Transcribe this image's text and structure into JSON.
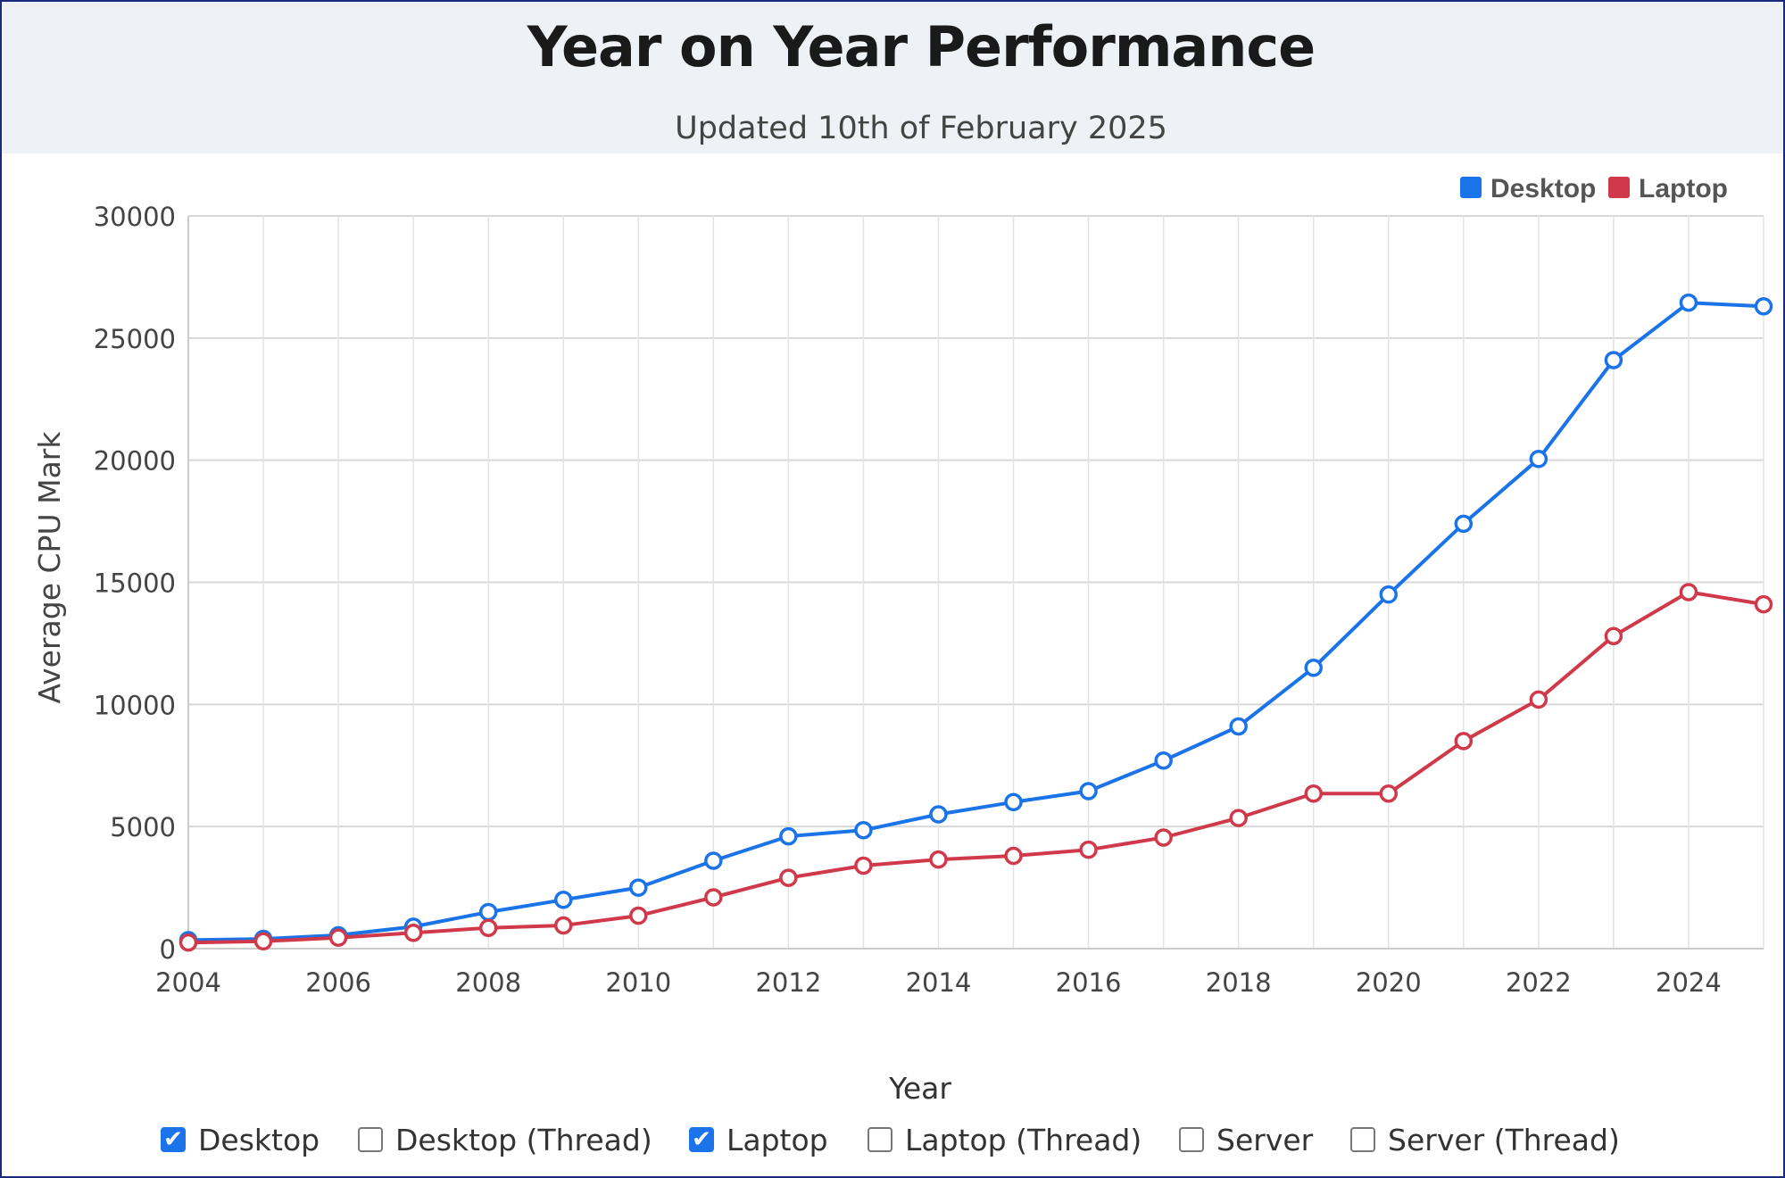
{
  "header": {
    "title": "Year on Year Performance",
    "subtitle": "Updated 10th of February 2025"
  },
  "chart_data": {
    "type": "line",
    "title": "Year on Year Performance",
    "subtitle": "Updated 10th of February 2025",
    "xlabel": "Year",
    "ylabel": "Average CPU Mark",
    "x": [
      2004,
      2005,
      2006,
      2007,
      2008,
      2009,
      2010,
      2011,
      2012,
      2013,
      2014,
      2015,
      2016,
      2017,
      2018,
      2019,
      2020,
      2021,
      2022,
      2023,
      2024,
      2025
    ],
    "xticks": [
      2004,
      2006,
      2008,
      2010,
      2012,
      2014,
      2016,
      2018,
      2020,
      2022,
      2024
    ],
    "xlim": [
      2004,
      2025
    ],
    "ylim": [
      0,
      30000
    ],
    "yticks": [
      0,
      5000,
      10000,
      15000,
      20000,
      25000,
      30000
    ],
    "grid": true,
    "legend_position": "top-right",
    "series": [
      {
        "name": "Desktop",
        "color": "#1a73e8",
        "values": [
          350,
          400,
          550,
          900,
          1500,
          2000,
          2500,
          3600,
          4600,
          4850,
          5500,
          6000,
          6450,
          7700,
          9100,
          11500,
          14500,
          17400,
          20050,
          24100,
          26450,
          26300
        ]
      },
      {
        "name": "Laptop",
        "color": "#d0394a",
        "values": [
          250,
          300,
          450,
          650,
          850,
          950,
          1350,
          2100,
          2900,
          3400,
          3650,
          3800,
          4050,
          4550,
          5350,
          6350,
          6350,
          8500,
          10200,
          12800,
          14600,
          14100
        ]
      }
    ]
  },
  "toggles": [
    {
      "label": "Desktop",
      "checked": true
    },
    {
      "label": "Desktop (Thread)",
      "checked": false
    },
    {
      "label": "Laptop",
      "checked": true
    },
    {
      "label": "Laptop (Thread)",
      "checked": false
    },
    {
      "label": "Server",
      "checked": false
    },
    {
      "label": "Server (Thread)",
      "checked": false
    }
  ],
  "colors": {
    "header_bg": "#eef2f6",
    "checkbox_checked": "#1a73e8"
  }
}
